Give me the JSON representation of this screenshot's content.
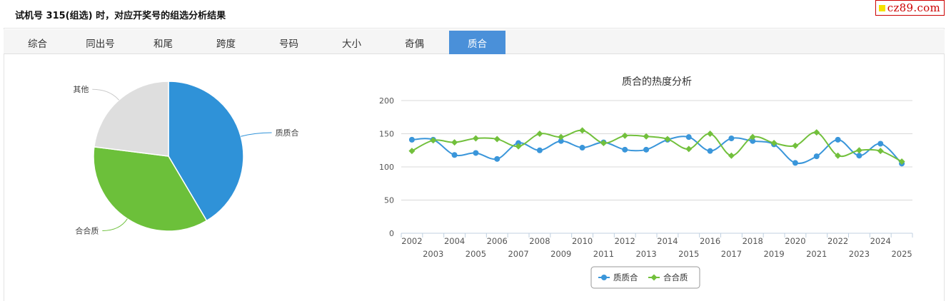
{
  "header": {
    "title": "试机号 315(组选) 时，对应开奖号的组选分析结果"
  },
  "watermark": {
    "text": "cz89.com"
  },
  "tabs": [
    {
      "label": "综合",
      "active": false
    },
    {
      "label": "同出号",
      "active": false
    },
    {
      "label": "和尾",
      "active": false
    },
    {
      "label": "跨度",
      "active": false
    },
    {
      "label": "号码",
      "active": false
    },
    {
      "label": "大小",
      "active": false
    },
    {
      "label": "奇偶",
      "active": false
    },
    {
      "label": "质合",
      "active": true
    }
  ],
  "chart_data": [
    {
      "type": "pie",
      "title": "",
      "slices": [
        {
          "label": "质质合",
          "value": 41.5,
          "color": "#2f92d8"
        },
        {
          "label": "合合质",
          "value": 35.5,
          "color": "#6cc03a"
        },
        {
          "label": "其他",
          "value": 23,
          "color": "#dedede"
        }
      ]
    },
    {
      "type": "line",
      "title": "质合的热度分析",
      "xlabel": "",
      "ylabel": "",
      "ylim": [
        0,
        200
      ],
      "yticks": [
        0,
        50,
        100,
        150,
        200
      ],
      "x": [
        2002,
        2003,
        2004,
        2005,
        2006,
        2007,
        2008,
        2009,
        2010,
        2011,
        2012,
        2013,
        2014,
        2015,
        2016,
        2017,
        2018,
        2019,
        2020,
        2021,
        2022,
        2023,
        2024,
        2025
      ],
      "grid": true,
      "legend": "bottom-center",
      "series": [
        {
          "name": "质质合",
          "color": "#3a96da",
          "marker": "circle",
          "values": [
            141,
            141,
            118,
            121,
            112,
            136,
            125,
            139,
            129,
            137,
            126,
            126,
            141,
            145,
            124,
            143,
            139,
            134,
            106,
            116,
            141,
            117,
            135,
            105
          ]
        },
        {
          "name": "合合质",
          "color": "#72c03c",
          "marker": "diamond",
          "values": [
            124,
            140,
            137,
            143,
            142,
            131,
            150,
            145,
            155,
            136,
            147,
            146,
            142,
            127,
            150,
            117,
            145,
            136,
            132,
            152,
            117,
            125,
            124,
            108
          ]
        }
      ]
    }
  ]
}
